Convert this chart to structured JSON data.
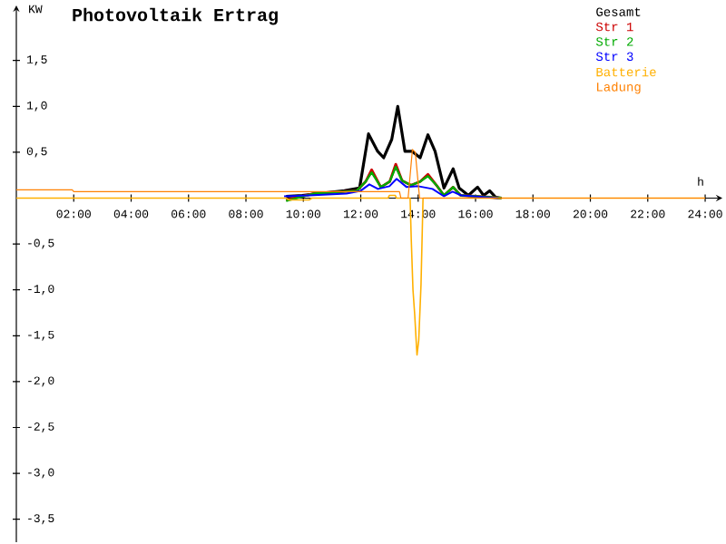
{
  "chart_data": {
    "type": "line",
    "title": "Photovoltaik Ertrag",
    "ylabel": "KW",
    "xlabel": "h",
    "xlim": [
      0,
      24.6
    ],
    "ylim": [
      -3.75,
      2.1
    ],
    "xticks": [
      {
        "value": 2,
        "label": "02:00"
      },
      {
        "value": 4,
        "label": "04:00"
      },
      {
        "value": 6,
        "label": "06:00"
      },
      {
        "value": 8,
        "label": "08:00"
      },
      {
        "value": 10,
        "label": "10:00"
      },
      {
        "value": 12,
        "label": "12:00"
      },
      {
        "value": 14,
        "label": "14:00"
      },
      {
        "value": 16,
        "label": "16:00"
      },
      {
        "value": 18,
        "label": "18:00"
      },
      {
        "value": 20,
        "label": "20:00"
      },
      {
        "value": 22,
        "label": "22:00"
      },
      {
        "value": 24,
        "label": "24:00"
      }
    ],
    "yticks": [
      {
        "value": 1.5,
        "label": "1,5"
      },
      {
        "value": 1.0,
        "label": "1,0"
      },
      {
        "value": 0.5,
        "label": "0,5"
      },
      {
        "value": -0.5,
        "label": "-0,5"
      },
      {
        "value": -1.0,
        "label": "-1,0"
      },
      {
        "value": -1.5,
        "label": "-1,5"
      },
      {
        "value": -2.0,
        "label": "-2,0"
      },
      {
        "value": -2.5,
        "label": "-2,5"
      },
      {
        "value": -3.0,
        "label": "-3,0"
      },
      {
        "value": -3.5,
        "label": "-3,5"
      }
    ],
    "legend": "top right",
    "series": [
      {
        "name": "Gesamt",
        "color": "#000000",
        "x": [
          9.4,
          9.96,
          11.43,
          11.96,
          12.27,
          12.59,
          12.8,
          13.08,
          13.29,
          13.54,
          13.79,
          14.07,
          14.34,
          14.59,
          14.9,
          15.22,
          15.43,
          15.75,
          16.07,
          16.28,
          16.49,
          16.7,
          16.9
        ],
        "values": [
          0.02,
          0.03,
          0.08,
          0.11,
          0.7,
          0.51,
          0.44,
          0.64,
          1.0,
          0.51,
          0.51,
          0.44,
          0.69,
          0.51,
          0.11,
          0.32,
          0.11,
          0.03,
          0.12,
          0.03,
          0.08,
          0.01,
          0
        ]
      },
      {
        "name": "Str 1",
        "color": "#cc0000",
        "x": [
          9.4,
          10.38,
          11.86,
          12.17,
          12.38,
          12.7,
          13.01,
          13.22,
          13.44,
          13.75,
          14.07,
          14.34,
          14.64,
          14.9,
          15.22,
          15.48,
          16.5,
          16.9
        ],
        "values": [
          -0.02,
          0.05,
          0.08,
          0.18,
          0.31,
          0.12,
          0.18,
          0.37,
          0.19,
          0.14,
          0.18,
          0.26,
          0.14,
          0.03,
          0.12,
          0.03,
          0.01,
          0
        ]
      },
      {
        "name": "Str 2",
        "color": "#00aa00",
        "x": [
          9.4,
          10.38,
          11.86,
          12.17,
          12.38,
          12.7,
          13.01,
          13.22,
          13.44,
          13.75,
          14.07,
          14.34,
          14.64,
          14.9,
          15.22,
          15.48,
          16.5,
          16.9
        ],
        "values": [
          -0.03,
          0.05,
          0.08,
          0.18,
          0.28,
          0.12,
          0.18,
          0.34,
          0.19,
          0.14,
          0.18,
          0.24,
          0.14,
          0.03,
          0.12,
          0.03,
          0.01,
          0
        ]
      },
      {
        "name": "Str 3",
        "color": "#0000ff",
        "x": [
          9.33,
          10.2,
          11.5,
          12.0,
          12.3,
          12.6,
          13.0,
          13.25,
          13.6,
          14.0,
          14.5,
          14.9,
          15.2,
          15.5,
          16.8
        ],
        "values": [
          0.02,
          0.03,
          0.05,
          0.08,
          0.15,
          0.1,
          0.13,
          0.21,
          0.12,
          0.13,
          0.1,
          0.02,
          0.07,
          0.03,
          0
        ]
      },
      {
        "name": "Batterie",
        "color": "#ffb000",
        "x": [
          0,
          9.4,
          9.5,
          10.2,
          10.3,
          12.95,
          13.0,
          13.2,
          13.25,
          13.72,
          13.76,
          13.82,
          13.88,
          13.93,
          13.96,
          14.02,
          14.1,
          14.17,
          24
        ],
        "values": [
          0,
          0,
          -0.02,
          -0.02,
          0,
          0,
          0.03,
          0.03,
          0,
          0,
          -0.45,
          -1.0,
          -1.27,
          -1.55,
          -1.71,
          -1.55,
          -0.94,
          0,
          0
        ]
      },
      {
        "name": "Ladung",
        "color": "#ff8000",
        "x": [
          0,
          1.95,
          2.0,
          13.35,
          13.4,
          13.65,
          13.8,
          13.9,
          14.05,
          14.1,
          24
        ],
        "values": [
          0.09,
          0.09,
          0.07,
          0.07,
          0,
          0,
          0.53,
          0.5,
          0,
          0,
          0
        ]
      }
    ]
  }
}
